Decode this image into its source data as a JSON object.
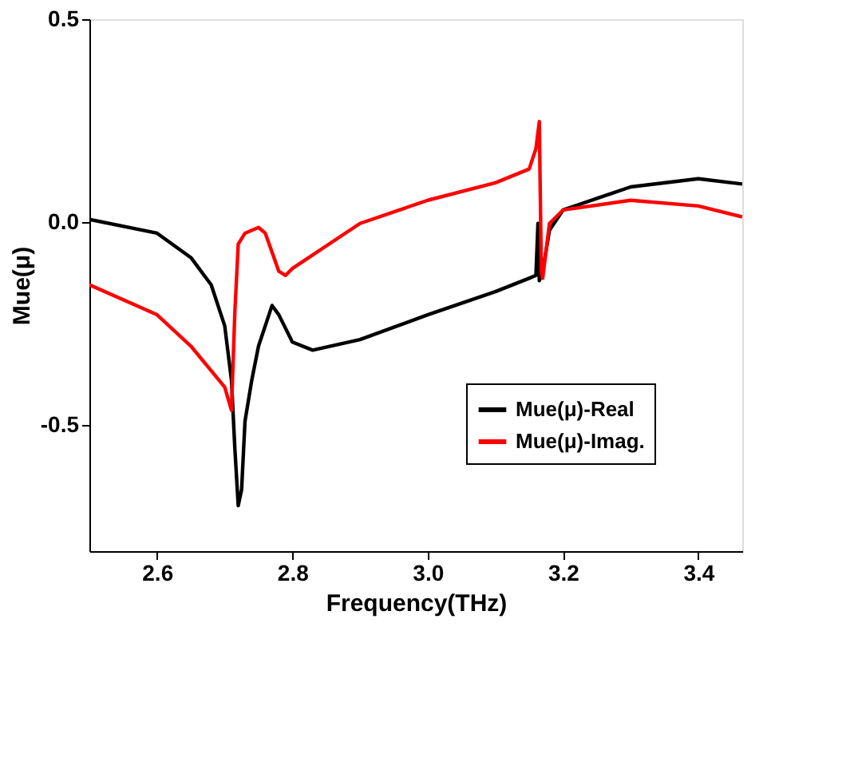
{
  "chart_data": {
    "type": "line",
    "xlabel": "Frequency(THz)",
    "ylabel": "Mue(μ)",
    "xlim": [
      2.5,
      3.465
    ],
    "ylim": [
      -0.81,
      0.5
    ],
    "xticks": [
      2.6,
      2.8,
      {
        "value": 3.0,
        "label": "3.0"
      },
      3.2,
      3.4
    ],
    "yticks": [
      -0.5,
      {
        "value": 0,
        "label": "0.0"
      },
      0.5
    ],
    "grid": false,
    "legend": "bottom right",
    "marker": "none",
    "line_style": "solid",
    "series": [
      {
        "name": "Mue(μ)-Real",
        "color": "#000000",
        "x": [
          2.5,
          2.6,
          2.65,
          2.68,
          2.7,
          2.71,
          2.715,
          2.72,
          2.725,
          2.73,
          2.74,
          2.75,
          2.77,
          2.78,
          2.8,
          2.83,
          2.9,
          3.0,
          3.1,
          3.15,
          3.16,
          3.163,
          3.165,
          3.17,
          3.18,
          3.2,
          3.3,
          3.4,
          3.465
        ],
        "values": [
          0.007,
          -0.027,
          -0.087,
          -0.154,
          -0.255,
          -0.389,
          -0.557,
          -0.698,
          -0.658,
          -0.49,
          -0.389,
          -0.305,
          -0.205,
          -0.228,
          -0.295,
          -0.315,
          -0.289,
          -0.228,
          -0.171,
          -0.138,
          -0.131,
          -0.003,
          -0.144,
          -0.12,
          -0.02,
          0.03,
          0.087,
          0.107,
          0.094
        ]
      },
      {
        "name": "Mue(μ)-Imag.",
        "color": "#ff0000",
        "x": [
          2.5,
          2.6,
          2.65,
          2.7,
          2.71,
          2.715,
          2.72,
          2.73,
          2.75,
          2.76,
          2.78,
          2.79,
          2.8,
          2.9,
          3.0,
          3.1,
          3.15,
          3.16,
          3.165,
          3.168,
          3.17,
          3.18,
          3.2,
          3.3,
          3.4,
          3.465
        ],
        "values": [
          -0.154,
          -0.228,
          -0.305,
          -0.406,
          -0.463,
          -0.221,
          -0.054,
          -0.027,
          -0.013,
          -0.027,
          -0.121,
          -0.131,
          -0.114,
          -0.003,
          0.054,
          0.097,
          0.131,
          0.181,
          0.248,
          -0.121,
          -0.138,
          -0.003,
          0.03,
          0.054,
          0.04,
          0.013
        ]
      }
    ]
  }
}
